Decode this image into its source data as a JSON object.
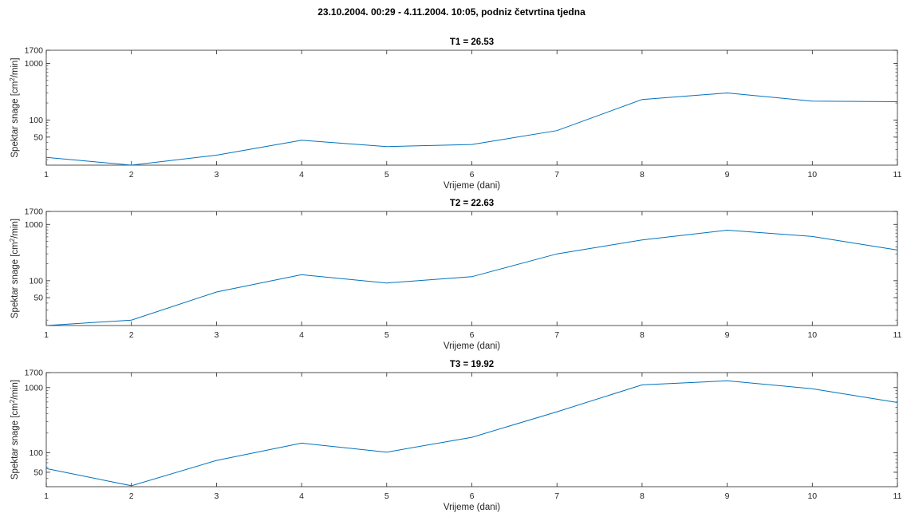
{
  "figure_title": "23.10.2004. 00:29 - 4.11.2004. 10:05, podniz četvrtina tjedna",
  "line_color": "#0072bd",
  "axis_color": "#262626",
  "chart_data": [
    {
      "type": "line",
      "title": "T1 = 26.53",
      "xlabel": "Vrijeme (dani)",
      "ylabel_parts": [
        "Spektar snage [cm",
        "2",
        "/min]"
      ],
      "yscale": "log",
      "xlim": [
        1,
        11
      ],
      "ylim": [
        16,
        1700
      ],
      "xticks": [
        1,
        2,
        3,
        4,
        5,
        6,
        7,
        8,
        9,
        10,
        11
      ],
      "yticks": [
        50,
        100,
        1000,
        1700
      ],
      "series": [
        {
          "x": [
            1,
            2,
            3,
            4,
            5,
            6,
            7,
            8,
            9,
            10,
            11
          ],
          "y": [
            22,
            16,
            24,
            44,
            34,
            37,
            65,
            230,
            300,
            215,
            210
          ]
        }
      ]
    },
    {
      "type": "line",
      "title": "T2 = 22.63",
      "xlabel": "Vrijeme (dani)",
      "ylabel_parts": [
        "Spektar snage [cm",
        "2",
        "/min]"
      ],
      "yscale": "log",
      "xlim": [
        1,
        11
      ],
      "ylim": [
        16,
        1700
      ],
      "xticks": [
        1,
        2,
        3,
        4,
        5,
        6,
        7,
        8,
        9,
        10,
        11
      ],
      "yticks": [
        50,
        100,
        1000,
        1700
      ],
      "series": [
        {
          "x": [
            1,
            2,
            3,
            4,
            5,
            6,
            7,
            8,
            9,
            10,
            11
          ],
          "y": [
            16,
            20,
            63,
            128,
            91,
            118,
            300,
            530,
            790,
            610,
            350
          ]
        }
      ]
    },
    {
      "type": "line",
      "title": "T3 = 19.92",
      "xlabel": "Vrijeme (dani)",
      "ylabel_parts": [
        "Spektar snage [cm",
        "2",
        "/min]"
      ],
      "yscale": "log",
      "xlim": [
        1,
        11
      ],
      "ylim": [
        30,
        1700
      ],
      "xticks": [
        1,
        2,
        3,
        4,
        5,
        6,
        7,
        8,
        9,
        10,
        11
      ],
      "yticks": [
        50,
        100,
        1000,
        1700
      ],
      "series": [
        {
          "x": [
            1,
            2,
            3,
            4,
            5,
            6,
            7,
            8,
            9,
            10,
            11
          ],
          "y": [
            57,
            31,
            76,
            140,
            102,
            172,
            425,
            1100,
            1270,
            960,
            590
          ]
        }
      ]
    }
  ]
}
